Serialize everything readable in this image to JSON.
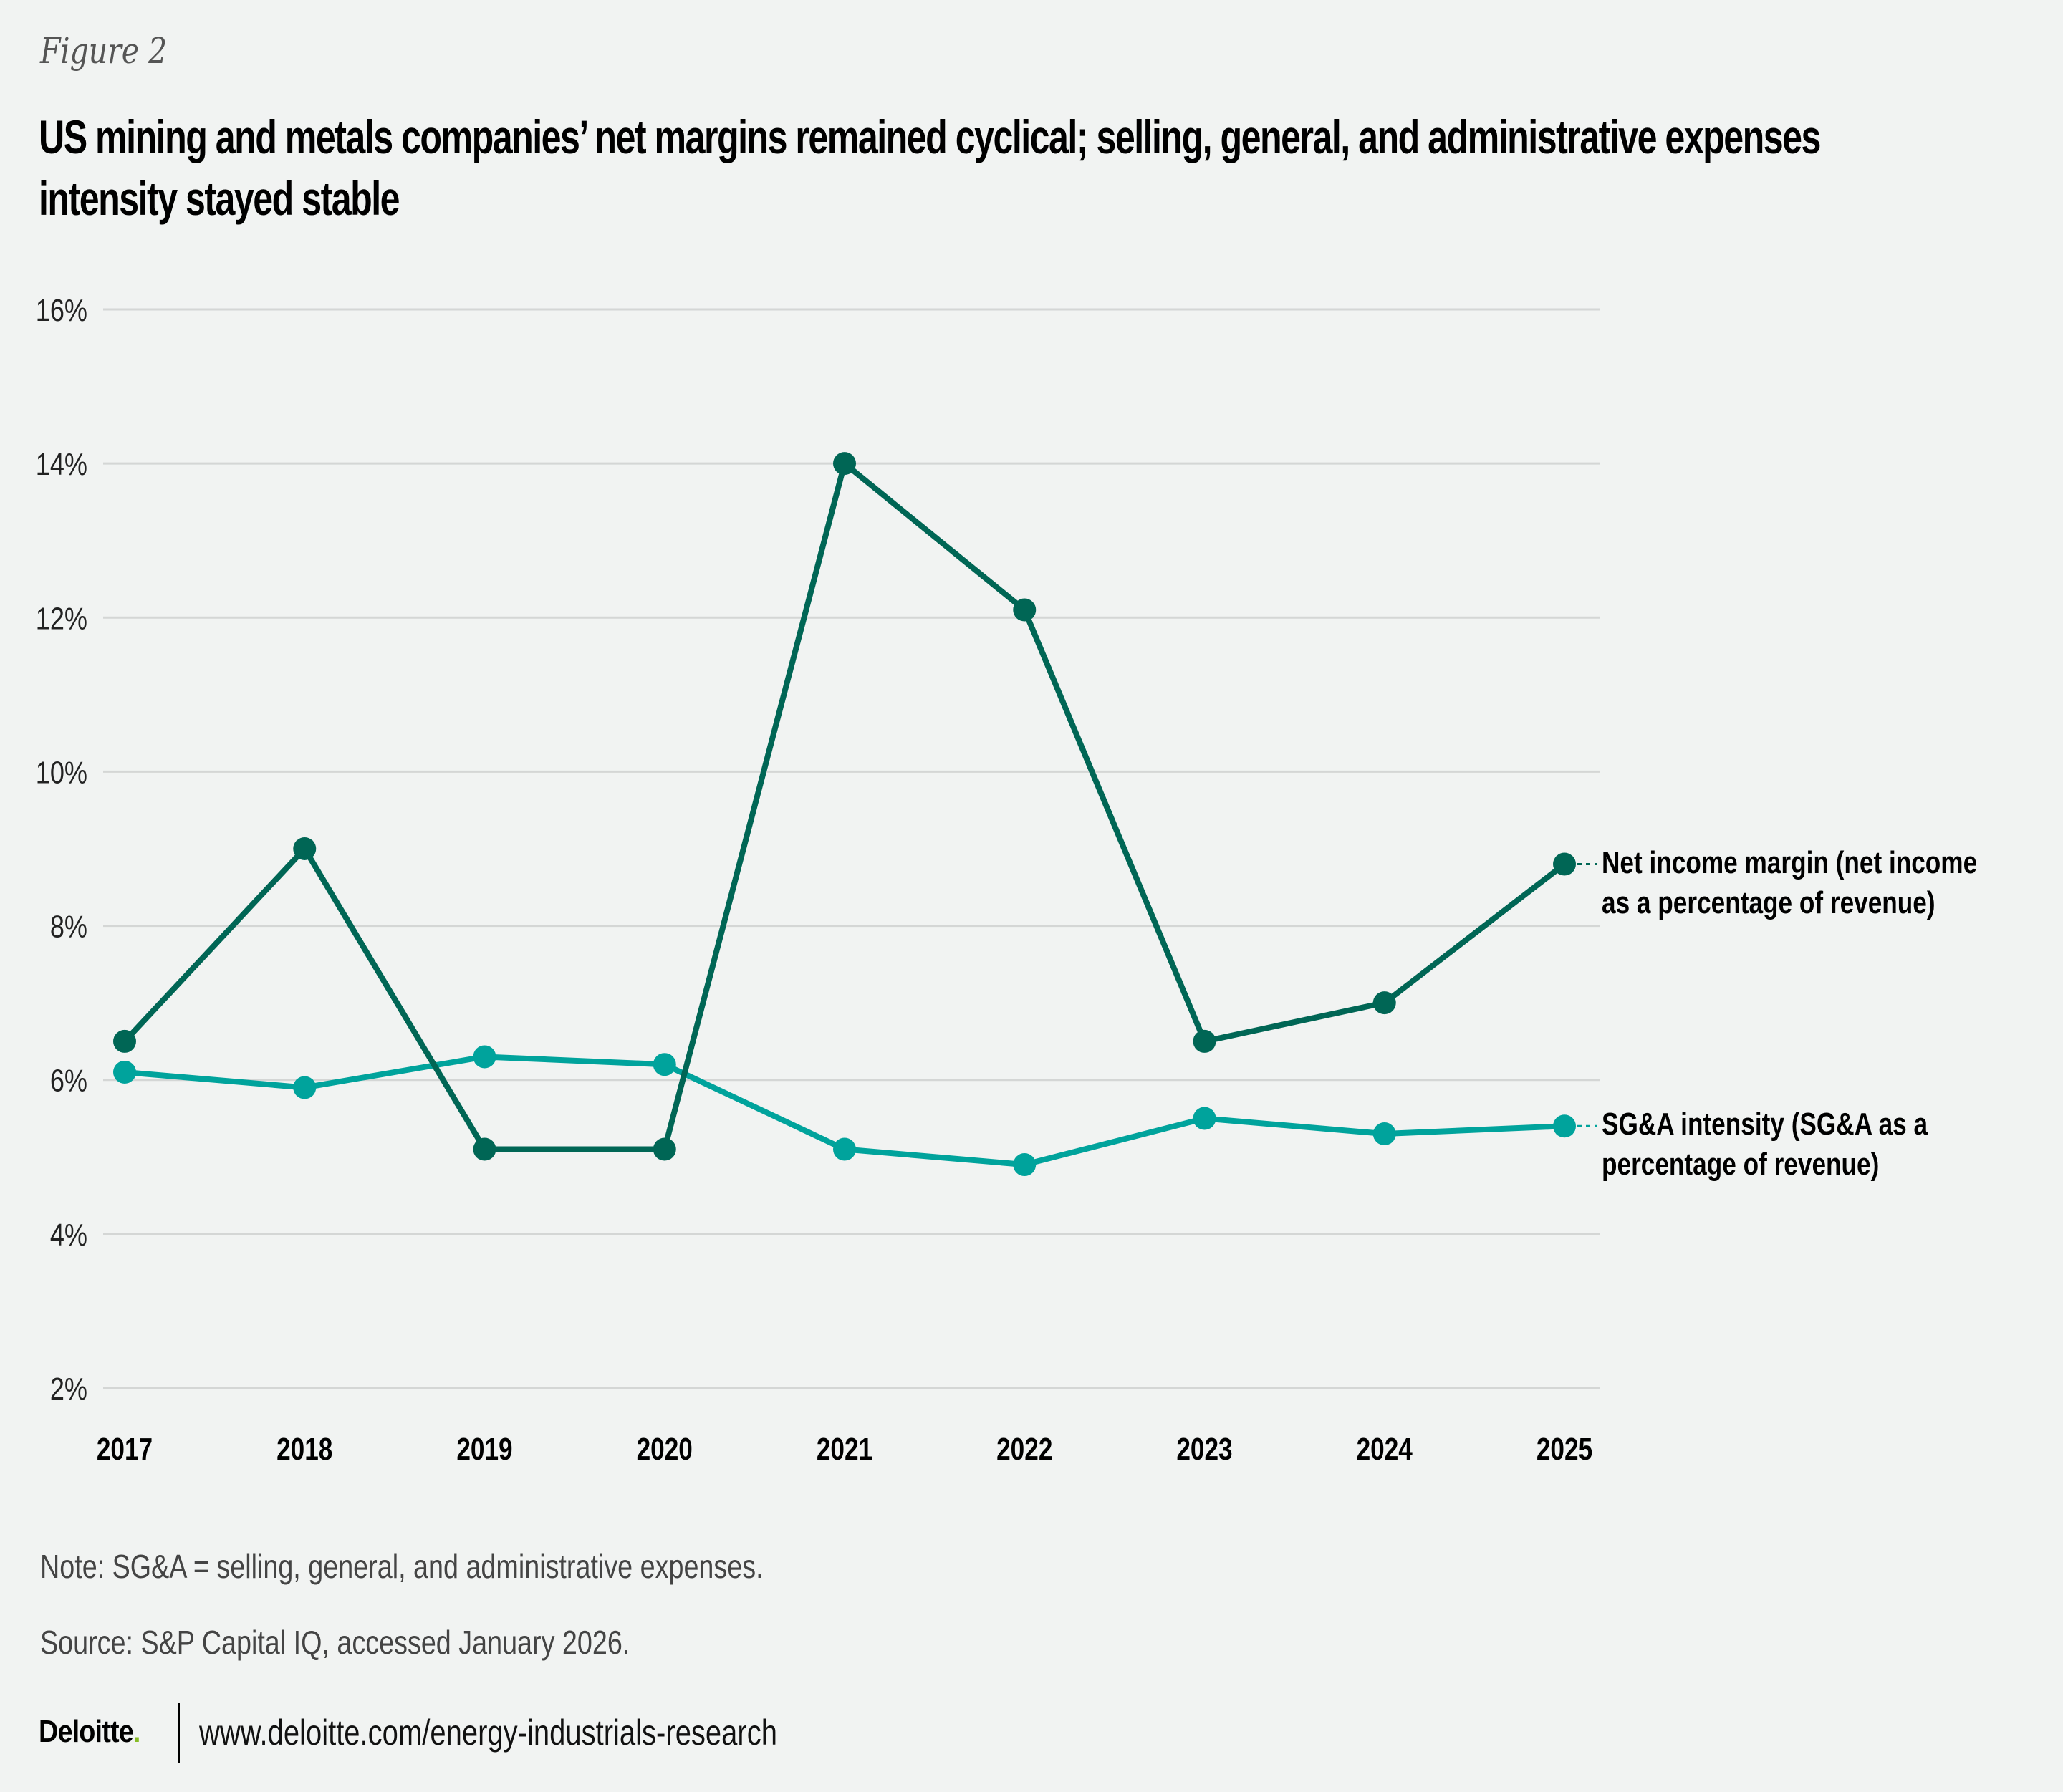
{
  "figure_label": "Figure 2",
  "title": "US mining and metals companies’ net margins remained cyclical; selling, general, and administrative expenses intensity stayed stable",
  "colors": {
    "background": "#F1F3F2",
    "net_income": "#006655",
    "sga": "#00A39C",
    "gridline": "#D4D6D5",
    "logo_dot": "#86BC25"
  },
  "chart_data": {
    "type": "line",
    "title": "US mining and metals companies’ net margins remained cyclical; selling, general, and administrative expenses intensity stayed stable",
    "xlabel": "",
    "ylabel": "",
    "x": [
      "2017",
      "2018",
      "2019",
      "2020",
      "2021",
      "2022",
      "2023",
      "2024",
      "2025"
    ],
    "ylim": [
      2,
      16
    ],
    "yticks": [
      2,
      4,
      6,
      8,
      10,
      12,
      14,
      16
    ],
    "ytick_labels": [
      "2%",
      "4%",
      "6%",
      "8%",
      "10%",
      "12%",
      "14%",
      "16%"
    ],
    "grid": true,
    "legend_placement": "right (direct labels at line ends)",
    "series": [
      {
        "name": "Net income margin (net income as a percentage of revenue)",
        "color": "#006655",
        "values": [
          6.5,
          9.0,
          5.1,
          5.1,
          14.0,
          12.1,
          6.5,
          7.0,
          8.8
        ]
      },
      {
        "name": "SG&A intensity (SG&A as a percentage of revenue)",
        "color": "#00A39C",
        "values": [
          6.1,
          5.9,
          6.3,
          6.2,
          5.1,
          4.9,
          5.5,
          5.3,
          5.4
        ]
      }
    ]
  },
  "legend": {
    "net_income": "Net income margin (net income as a percentage of revenue)",
    "sga": "SG&A intensity (SG&A as a percentage of revenue)"
  },
  "note": "Note: SG&A = selling, general, and administrative expenses.",
  "source": "Source: S&P Capital IQ, accessed January 2026.",
  "footer": {
    "logo": "Deloitte",
    "logo_dot": ".",
    "url": "www.deloitte.com/energy-industrials-research"
  }
}
